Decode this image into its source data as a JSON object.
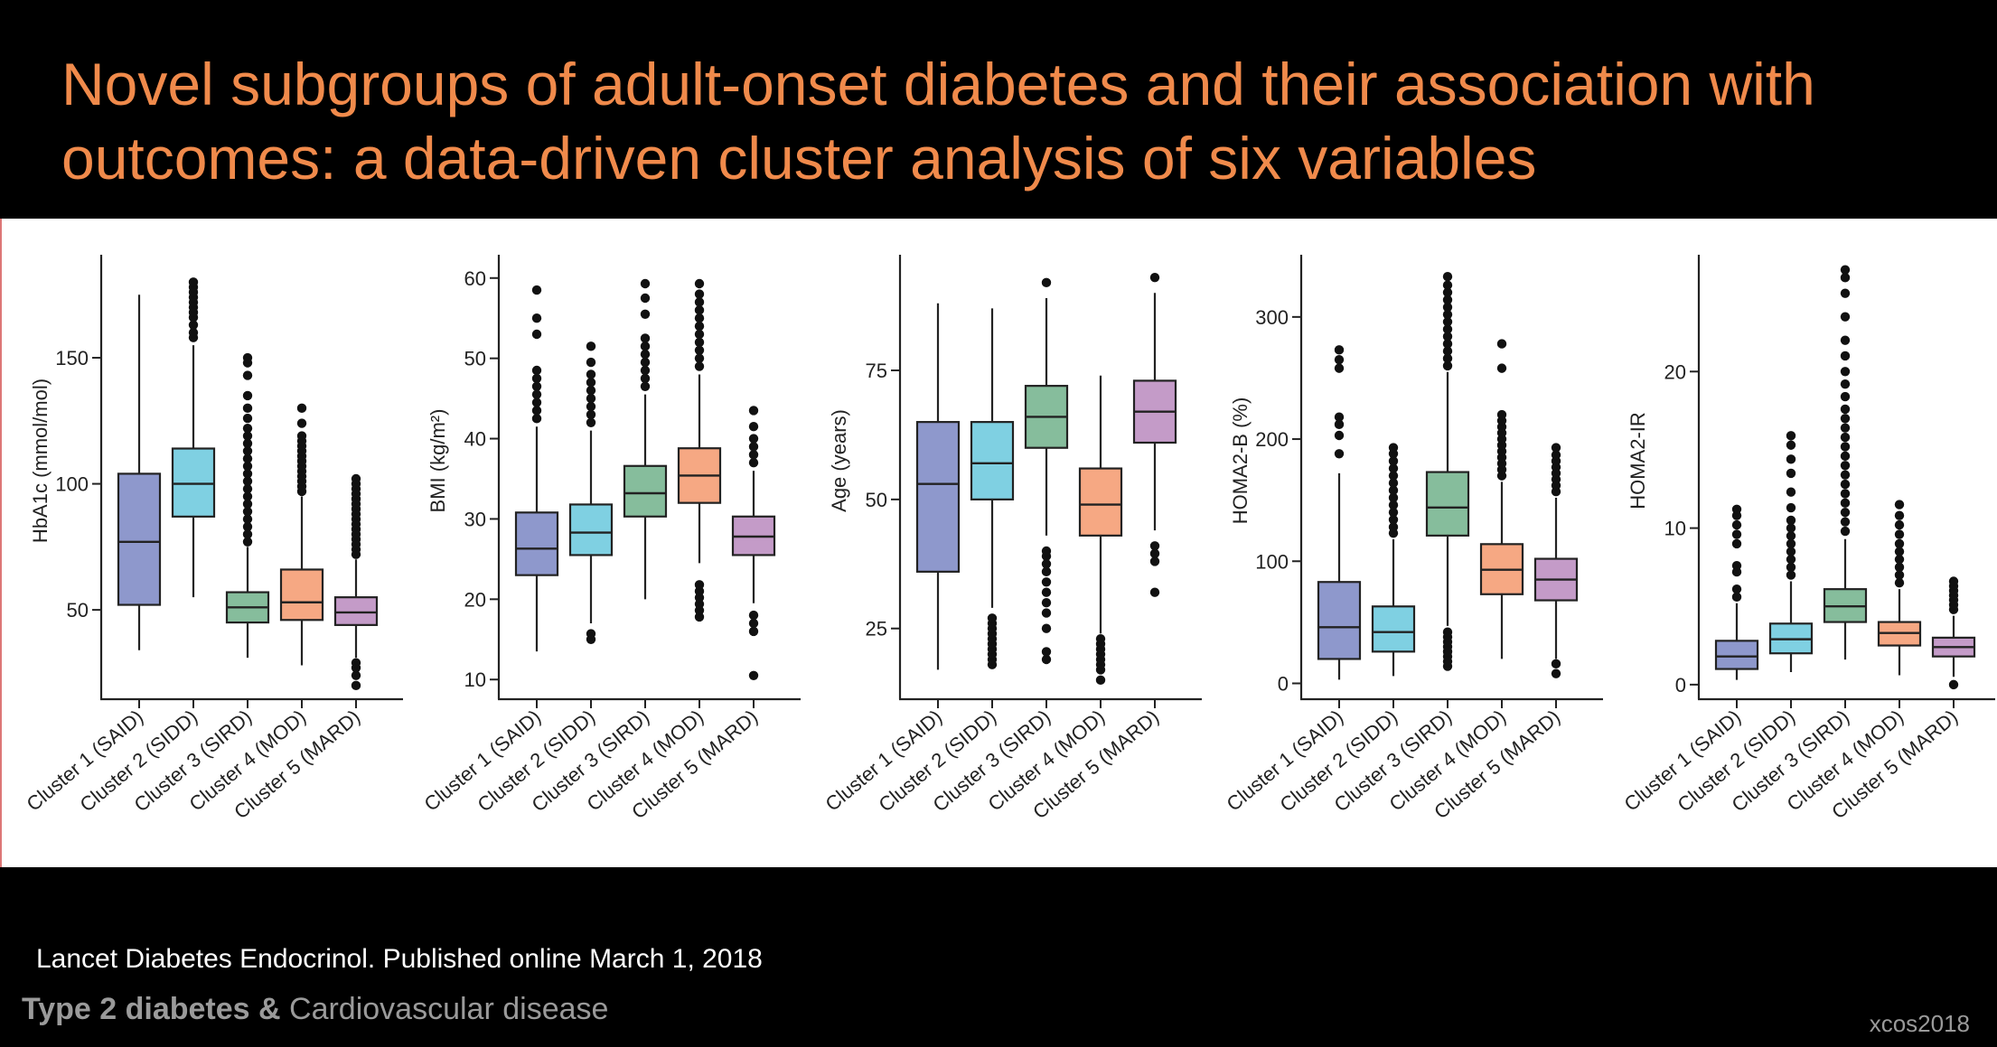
{
  "slide": {
    "title": "Novel subgroups of adult-onset diabetes and their association with outcomes: a data-driven cluster analysis of six variables",
    "citation": "Lancet Diabetes Endocrinol. Published online March 1, 2018",
    "footer_bold": "Type 2 diabetes &",
    "footer_normal": " Cardiovascular disease",
    "watermark": "xcos2018"
  },
  "colors": [
    "#8e98cc",
    "#7fd0e2",
    "#86bd9c",
    "#f6a883",
    "#c49bc8"
  ],
  "chart_data": [
    {
      "type": "box",
      "ylabel": "HbA1c (mmol/mol)",
      "ylim": [
        16,
        188
      ],
      "yticks": [
        50,
        100,
        150
      ],
      "categories": [
        "Cluster 1 (SAID)",
        "Cluster 2 (SIDD)",
        "Cluster 3 (SIRD)",
        "Cluster 4 (MOD)",
        "Cluster 5 (MARD)"
      ],
      "boxes": [
        {
          "wlow": 34,
          "q1": 52,
          "median": 77,
          "q3": 104,
          "whigh": 175,
          "outliers": []
        },
        {
          "wlow": 55,
          "q1": 87,
          "median": 100,
          "q3": 114,
          "whigh": 155,
          "outliers": [
            158,
            160,
            163,
            166,
            168,
            170,
            172,
            174,
            176,
            178,
            180
          ]
        },
        {
          "wlow": 31,
          "q1": 45,
          "median": 51,
          "q3": 57,
          "whigh": 75,
          "outliers": [
            77,
            80,
            83,
            86,
            89,
            92,
            95,
            98,
            101,
            104,
            107,
            110,
            113,
            116,
            119,
            122,
            126,
            130,
            135,
            143,
            148,
            150
          ]
        },
        {
          "wlow": 28,
          "q1": 46,
          "median": 53,
          "q3": 66,
          "whigh": 95,
          "outliers": [
            97,
            99,
            101,
            103,
            105,
            107,
            109,
            111,
            113,
            115,
            117,
            119,
            124,
            130
          ]
        },
        {
          "wlow": 31,
          "q1": 44,
          "median": 49,
          "q3": 55,
          "whigh": 70,
          "outliers": [
            20,
            24,
            27,
            29,
            72,
            74,
            76,
            78,
            80,
            82,
            84,
            86,
            88,
            90,
            92,
            94,
            96,
            98,
            100,
            102
          ]
        }
      ]
    },
    {
      "type": "box",
      "ylabel": "BMI (kg/m²)",
      "ylim": [
        8,
        62
      ],
      "yticks": [
        10,
        20,
        30,
        40,
        50,
        60
      ],
      "categories": [
        "Cluster 1 (SAID)",
        "Cluster 2 (SIDD)",
        "Cluster 3 (SIRD)",
        "Cluster 4 (MOD)",
        "Cluster 5 (MARD)"
      ],
      "boxes": [
        {
          "wlow": 13.5,
          "q1": 23,
          "median": 26.3,
          "q3": 30.8,
          "whigh": 41.5,
          "outliers": [
            42.5,
            43.5,
            44.5,
            45.5,
            46.5,
            47.5,
            48.5,
            53,
            55,
            58.5
          ]
        },
        {
          "wlow": 17,
          "q1": 25.5,
          "median": 28.3,
          "q3": 31.8,
          "whigh": 41,
          "outliers": [
            15,
            15.7,
            42,
            43,
            44,
            45,
            46,
            47,
            48,
            49.5,
            51.5
          ]
        },
        {
          "wlow": 20,
          "q1": 30.3,
          "median": 33.2,
          "q3": 36.6,
          "whigh": 45.5,
          "outliers": [
            46.5,
            47.5,
            48.5,
            49.5,
            50.5,
            51.5,
            52.5,
            55.5,
            57.5,
            59.3
          ]
        },
        {
          "wlow": 24.5,
          "q1": 32,
          "median": 35.4,
          "q3": 38.8,
          "whigh": 48,
          "outliers": [
            17.8,
            18.6,
            19.4,
            20.2,
            21,
            21.8,
            49,
            50,
            51,
            52,
            53,
            54,
            55,
            56,
            57,
            58,
            59.3
          ]
        },
        {
          "wlow": 19.5,
          "q1": 25.5,
          "median": 27.8,
          "q3": 30.3,
          "whigh": 36,
          "outliers": [
            10.5,
            16,
            17,
            18,
            37,
            38,
            39,
            40,
            41.5,
            43.5
          ]
        }
      ]
    },
    {
      "type": "box",
      "ylabel": "Age (years)",
      "ylim": [
        12,
        96
      ],
      "yticks": [
        25,
        50,
        75
      ],
      "categories": [
        "Cluster 1 (SAID)",
        "Cluster 2 (SIDD)",
        "Cluster 3 (SIRD)",
        "Cluster 4 (MOD)",
        "Cluster 5 (MARD)"
      ],
      "boxes": [
        {
          "wlow": 17,
          "q1": 36,
          "median": 53,
          "q3": 65,
          "whigh": 88,
          "outliers": []
        },
        {
          "wlow": 29,
          "q1": 50,
          "median": 57,
          "q3": 65,
          "whigh": 87,
          "outliers": [
            18,
            19,
            20,
            21,
            22,
            23,
            24,
            25,
            26,
            27
          ]
        },
        {
          "wlow": 43,
          "q1": 60,
          "median": 66,
          "q3": 72,
          "whigh": 89,
          "outliers": [
            92,
            19,
            20.5,
            25,
            28,
            30,
            32,
            34,
            36,
            37.5,
            39,
            40
          ]
        },
        {
          "wlow": 24,
          "q1": 43,
          "median": 49,
          "q3": 56,
          "whigh": 74,
          "outliers": [
            15,
            17,
            18,
            19,
            20,
            21,
            22,
            23
          ]
        },
        {
          "wlow": 44,
          "q1": 61,
          "median": 67,
          "q3": 73,
          "whigh": 90,
          "outliers": [
            93,
            32,
            38,
            39.5,
            41
          ]
        }
      ]
    },
    {
      "type": "box",
      "ylabel": "HOMA2-B (%)",
      "ylim": [
        -10,
        345
      ],
      "yticks": [
        0,
        100,
        200,
        300
      ],
      "categories": [
        "Cluster 1 (SAID)",
        "Cluster 2 (SIDD)",
        "Cluster 3 (SIRD)",
        "Cluster 4 (MOD)",
        "Cluster 5 (MARD)"
      ],
      "boxes": [
        {
          "wlow": 3,
          "q1": 20,
          "median": 46,
          "q3": 83,
          "whigh": 172,
          "outliers": [
            188,
            203,
            212,
            218,
            258,
            265,
            273
          ]
        },
        {
          "wlow": 6,
          "q1": 26,
          "median": 42,
          "q3": 63,
          "whigh": 118,
          "outliers": [
            123,
            128,
            134,
            140,
            146,
            152,
            158,
            164,
            170,
            176,
            182,
            188,
            193
          ]
        },
        {
          "wlow": 47,
          "q1": 121,
          "median": 144,
          "q3": 173,
          "whigh": 255,
          "outliers": [
            14,
            18,
            22,
            26,
            30,
            34,
            38,
            42,
            260,
            266,
            272,
            278,
            284,
            290,
            296,
            302,
            308,
            314,
            320,
            326,
            333
          ]
        },
        {
          "wlow": 20,
          "q1": 73,
          "median": 93,
          "q3": 114,
          "whigh": 165,
          "outliers": [
            170,
            175,
            180,
            185,
            190,
            195,
            200,
            205,
            210,
            215,
            220,
            258,
            278
          ]
        },
        {
          "wlow": 20,
          "q1": 68,
          "median": 85,
          "q3": 102,
          "whigh": 152,
          "outliers": [
            8,
            16,
            157,
            162,
            167,
            172,
            177,
            182,
            187,
            193
          ]
        }
      ]
    },
    {
      "type": "box",
      "ylabel": "HOMA2-IR",
      "ylim": [
        -0.7,
        27
      ],
      "yticks": [
        0,
        10,
        20
      ],
      "categories": [
        "Cluster 1 (SAID)",
        "Cluster 2 (SIDD)",
        "Cluster 3 (SIRD)",
        "Cluster 4 (MOD)",
        "Cluster 5 (MARD)"
      ],
      "boxes": [
        {
          "wlow": 0.3,
          "q1": 1.0,
          "median": 1.8,
          "q3": 2.8,
          "whigh": 5.2,
          "outliers": [
            5.6,
            6.1,
            7.2,
            7.6,
            9.0,
            9.6,
            10.2,
            10.8,
            11.2
          ]
        },
        {
          "wlow": 0.8,
          "q1": 2.0,
          "median": 2.9,
          "q3": 3.9,
          "whigh": 6.6,
          "outliers": [
            7.0,
            7.5,
            8.0,
            8.5,
            9.0,
            9.5,
            10.0,
            10.5,
            11.3,
            12.3,
            13.5,
            14.4,
            15.3,
            15.9
          ]
        },
        {
          "wlow": 1.6,
          "q1": 4.0,
          "median": 5.0,
          "q3": 6.1,
          "whigh": 9.3,
          "outliers": [
            9.8,
            10.4,
            11.0,
            11.6,
            12.2,
            12.8,
            13.4,
            14.0,
            14.6,
            15.2,
            15.8,
            16.4,
            17.0,
            17.6,
            18.4,
            19.2,
            20.0,
            21.0,
            22.0,
            23.5,
            25.0,
            26.0,
            26.5
          ]
        },
        {
          "wlow": 0.6,
          "q1": 2.5,
          "median": 3.3,
          "q3": 4.0,
          "whigh": 6.1,
          "outliers": [
            6.5,
            7.0,
            7.5,
            8.0,
            8.5,
            9.0,
            9.6,
            10.2,
            10.8,
            11.5
          ]
        },
        {
          "wlow": 0.5,
          "q1": 1.8,
          "median": 2.4,
          "q3": 3.0,
          "whigh": 4.4,
          "outliers": [
            0.0,
            4.8,
            5.1,
            5.4,
            5.7,
            6.0,
            6.3,
            6.6
          ]
        }
      ]
    }
  ]
}
